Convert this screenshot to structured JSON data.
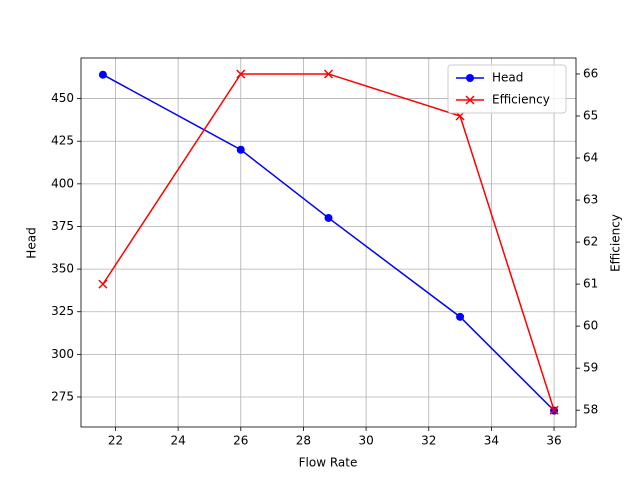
{
  "chart_data": {
    "type": "line",
    "x_label": "Flow Rate",
    "y_label": "Head",
    "y2_label": "Efficiency",
    "y_label_color": "#0000ff",
    "y2_label_color": "#ff0000",
    "x": [
      21.6,
      26.0,
      28.8,
      33.0,
      36.0
    ],
    "series": [
      {
        "name": "Head",
        "color": "#0000ff",
        "marker": "circle",
        "values": [
          464,
          420,
          380,
          322,
          267
        ]
      },
      {
        "name": "Efficiency",
        "color": "#ff0000",
        "marker": "x",
        "axis": "y2",
        "values": [
          61,
          66,
          66,
          65,
          58
        ]
      }
    ],
    "xlim": [
      20.9,
      36.7
    ],
    "xticks": [
      22,
      24,
      26,
      28,
      30,
      32,
      34,
      36
    ],
    "ylim": [
      257.4,
      473.8
    ],
    "yticks": [
      275,
      300,
      325,
      350,
      375,
      400,
      425,
      450
    ],
    "y2lim": [
      57.6,
      66.38
    ],
    "y2ticks": [
      58,
      59,
      60,
      61,
      62,
      63,
      64,
      65,
      66
    ],
    "grid": true,
    "legend": "upper-right"
  }
}
